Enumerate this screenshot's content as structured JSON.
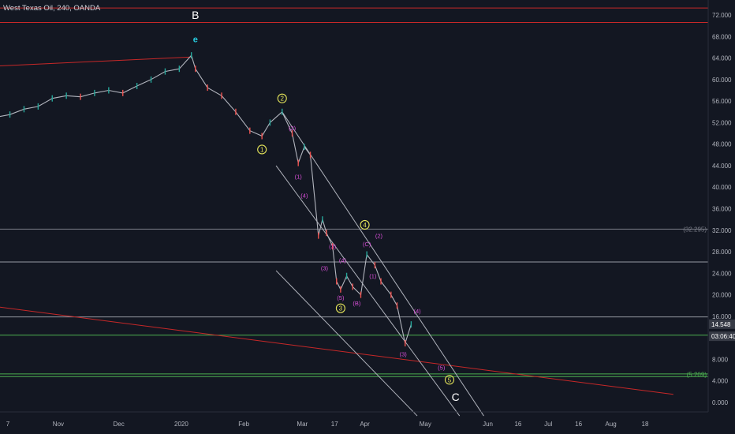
{
  "header": {
    "title": "West Texas Oil, 240, OANDA"
  },
  "chart_data": {
    "type": "line",
    "title": "West Texas Oil, 240, OANDA",
    "ylim": [
      -2,
      74
    ],
    "y_ticks": [
      "72.000",
      "68.000",
      "64.000",
      "60.000",
      "56.000",
      "52.000",
      "48.000",
      "44.000",
      "40.000",
      "36.000",
      "32.000",
      "28.000",
      "24.000",
      "20.000",
      "16.000",
      "12.000",
      "8.000",
      "4.000",
      "0.000"
    ],
    "y_tick_values": [
      72,
      68,
      64,
      60,
      56,
      52,
      48,
      44,
      40,
      36,
      32,
      28,
      24,
      20,
      16,
      12,
      8,
      4,
      0
    ],
    "x_ticks": [
      {
        "label": "7",
        "date": "2019-10-07"
      },
      {
        "label": "Nov",
        "date": "2019-11-01"
      },
      {
        "label": "Dec",
        "date": "2019-12-01"
      },
      {
        "label": "2020",
        "date": "2020-01-01"
      },
      {
        "label": "Feb",
        "date": "2020-02-01"
      },
      {
        "label": "Mar",
        "date": "2020-03-01"
      },
      {
        "label": "17",
        "date": "2020-03-17"
      },
      {
        "label": "Apr",
        "date": "2020-04-01"
      },
      {
        "label": "May",
        "date": "2020-05-01"
      },
      {
        "label": "Jun",
        "date": "2020-06-01"
      },
      {
        "label": "16",
        "date": "2020-06-16"
      },
      {
        "label": "Jul",
        "date": "2020-07-01"
      },
      {
        "label": "16",
        "date": "2020-07-16"
      },
      {
        "label": "Aug",
        "date": "2020-08-01"
      },
      {
        "label": "18",
        "date": "2020-08-18"
      }
    ],
    "series": [
      {
        "points": [
          {
            "x": "2019-10-01",
            "y": 53.0
          },
          {
            "x": "2019-10-08",
            "y": 53.5
          },
          {
            "x": "2019-10-15",
            "y": 54.5
          },
          {
            "x": "2019-10-22",
            "y": 55.0
          },
          {
            "x": "2019-10-29",
            "y": 56.5
          },
          {
            "x": "2019-11-05",
            "y": 57.0
          },
          {
            "x": "2019-11-12",
            "y": 56.8
          },
          {
            "x": "2019-11-19",
            "y": 57.5
          },
          {
            "x": "2019-11-26",
            "y": 58.0
          },
          {
            "x": "2019-12-03",
            "y": 57.5
          },
          {
            "x": "2019-12-10",
            "y": 58.8
          },
          {
            "x": "2019-12-17",
            "y": 60.0
          },
          {
            "x": "2019-12-24",
            "y": 61.5
          },
          {
            "x": "2019-12-31",
            "y": 62.0
          },
          {
            "x": "2020-01-06",
            "y": 64.5
          },
          {
            "x": "2020-01-08",
            "y": 62.0
          },
          {
            "x": "2020-01-14",
            "y": 58.5
          },
          {
            "x": "2020-01-21",
            "y": 57.0
          },
          {
            "x": "2020-01-28",
            "y": 54.0
          },
          {
            "x": "2020-02-04",
            "y": 50.5
          },
          {
            "x": "2020-02-10",
            "y": 49.5
          },
          {
            "x": "2020-02-14",
            "y": 52.0
          },
          {
            "x": "2020-02-20",
            "y": 54.0
          },
          {
            "x": "2020-02-25",
            "y": 50.0
          },
          {
            "x": "2020-02-28",
            "y": 44.5
          },
          {
            "x": "2020-03-02",
            "y": 47.5
          },
          {
            "x": "2020-03-05",
            "y": 46.0
          },
          {
            "x": "2020-03-09",
            "y": 31.0
          },
          {
            "x": "2020-03-11",
            "y": 34.0
          },
          {
            "x": "2020-03-13",
            "y": 31.5
          },
          {
            "x": "2020-03-16",
            "y": 29.0
          },
          {
            "x": "2020-03-18",
            "y": 22.5
          },
          {
            "x": "2020-03-20",
            "y": 21.0
          },
          {
            "x": "2020-03-23",
            "y": 23.5
          },
          {
            "x": "2020-03-26",
            "y": 21.5
          },
          {
            "x": "2020-03-30",
            "y": 20.0
          },
          {
            "x": "2020-04-02",
            "y": 27.5
          },
          {
            "x": "2020-04-06",
            "y": 25.5
          },
          {
            "x": "2020-04-09",
            "y": 22.5
          },
          {
            "x": "2020-04-14",
            "y": 20.0
          },
          {
            "x": "2020-04-17",
            "y": 18.0
          },
          {
            "x": "2020-04-21",
            "y": 11.0
          },
          {
            "x": "2020-04-24",
            "y": 14.5
          }
        ]
      }
    ],
    "horizontal_lines": [
      {
        "y": 73.3,
        "color": "#c62828"
      },
      {
        "y": 70.6,
        "color": "#c62828"
      },
      {
        "y": 32.2,
        "color": "#787b86"
      },
      {
        "y": 26.1,
        "color": "#9598a1"
      },
      {
        "y": 15.9,
        "color": "#9598a1"
      },
      {
        "y": 12.5,
        "color": "#4caf50"
      },
      {
        "y": 5.3,
        "color": "#4caf50"
      },
      {
        "y": 4.8,
        "color": "#4caf50"
      }
    ],
    "trend_lines": [
      {
        "from": {
          "x": "2019-10-01",
          "y": 62.5
        },
        "to": {
          "x": "2020-01-06",
          "y": 64.2
        },
        "color": "#c62828"
      },
      {
        "from": {
          "x": "2019-10-01",
          "y": 17.8
        },
        "to": {
          "x": "2020-09-01",
          "y": 1.5
        },
        "color": "#c62828"
      },
      {
        "from": {
          "x": "2020-02-20",
          "y": 54.0
        },
        "to": {
          "x": "2020-05-30",
          "y": -2.5
        },
        "color": "#b0b3bc"
      },
      {
        "from": {
          "x": "2020-02-17",
          "y": 44.0
        },
        "to": {
          "x": "2020-05-18",
          "y": -2.5
        },
        "color": "#b0b3bc"
      },
      {
        "from": {
          "x": "2020-02-17",
          "y": 24.5
        },
        "to": {
          "x": "2020-04-27",
          "y": -2.5
        },
        "color": "#b0b3bc"
      }
    ],
    "annotations": [
      {
        "text": "B",
        "x": "2020-01-08",
        "y": 72.0,
        "style": "big"
      },
      {
        "text": "e",
        "x": "2020-01-08",
        "y": 67.5,
        "style": "cyan"
      },
      {
        "text": "2",
        "x": "2020-02-20",
        "y": 56.5,
        "style": "yellow"
      },
      {
        "text": "1",
        "x": "2020-02-10",
        "y": 47.0,
        "style": "yellow"
      },
      {
        "text": "(2)",
        "x": "2020-02-25",
        "y": 51.0,
        "style": "pink"
      },
      {
        "text": "(1)",
        "x": "2020-02-28",
        "y": 42.0,
        "style": "pink"
      },
      {
        "text": "(4)",
        "x": "2020-03-02",
        "y": 38.5,
        "style": "pink"
      },
      {
        "text": "(3)",
        "x": "2020-03-16",
        "y": 29.0,
        "style": "pink"
      },
      {
        "text": "(3)",
        "x": "2020-03-12",
        "y": 25.0,
        "style": "pink"
      },
      {
        "text": "(4)",
        "x": "2020-03-21",
        "y": 26.5,
        "style": "pink"
      },
      {
        "text": "(5)",
        "x": "2020-03-20",
        "y": 19.5,
        "style": "pink"
      },
      {
        "text": "3",
        "x": "2020-03-20",
        "y": 17.5,
        "style": "yellow"
      },
      {
        "text": "(B)",
        "x": "2020-03-28",
        "y": 18.5,
        "style": "pink"
      },
      {
        "text": "4",
        "x": "2020-04-01",
        "y": 33.0,
        "style": "yellow"
      },
      {
        "text": "(C)",
        "x": "2020-04-02",
        "y": 29.5,
        "style": "pink"
      },
      {
        "text": "(2)",
        "x": "2020-04-08",
        "y": 31.0,
        "style": "pink"
      },
      {
        "text": "(1)",
        "x": "2020-04-05",
        "y": 23.5,
        "style": "pink"
      },
      {
        "text": "(4)",
        "x": "2020-04-27",
        "y": 17.0,
        "style": "pink"
      },
      {
        "text": "(3)",
        "x": "2020-04-20",
        "y": 9.0,
        "style": "pink"
      },
      {
        "text": "(5)",
        "x": "2020-05-09",
        "y": 6.5,
        "style": "pink"
      },
      {
        "text": "5",
        "x": "2020-05-13",
        "y": 4.2,
        "style": "yellow"
      },
      {
        "text": "C",
        "x": "2020-05-16",
        "y": 1.0,
        "style": "big"
      }
    ],
    "price_labels": [
      {
        "text": "(32.295)",
        "y": 32.2,
        "color": "#787b86"
      },
      {
        "text": "(5.209)",
        "y": 5.2,
        "color": "#4caf50"
      }
    ],
    "price_badges": [
      {
        "text": "14.548",
        "y": 14.55,
        "bg": "#363a45",
        "fg": "#ffffff"
      },
      {
        "text": "03:06:40",
        "y": 12.3,
        "bg": "#363a45",
        "fg": "#ffffff"
      }
    ],
    "grid": false
  }
}
